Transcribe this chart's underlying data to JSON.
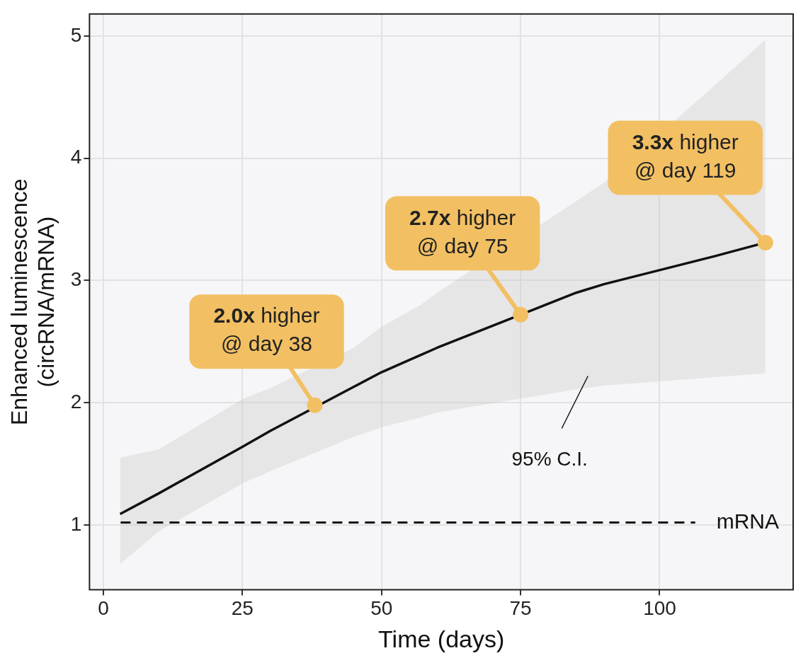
{
  "chart_data": {
    "type": "line",
    "xlabel": "Time (days)",
    "ylabel": "Enhanced luminescence\n(circRNA/mRNA)",
    "xlim": [
      -2.5,
      124
    ],
    "ylim": [
      0.47,
      5.18
    ],
    "xticks": [
      0,
      25,
      50,
      75,
      100
    ],
    "yticks": [
      1,
      2,
      3,
      4,
      5
    ],
    "grid": true,
    "legend": false,
    "marker": "none",
    "line_style": "solid",
    "series": [
      {
        "color": "#111111",
        "x": [
          3,
          10,
          25,
          30,
          45,
          50,
          57,
          60,
          85,
          90,
          110,
          119
        ],
        "values": [
          1.09,
          1.26,
          1.64,
          1.77,
          2.13,
          2.25,
          2.39,
          2.45,
          2.9,
          2.97,
          3.2,
          3.31
        ],
        "lower": [
          0.68,
          0.95,
          1.34,
          1.44,
          1.72,
          1.8,
          1.88,
          1.92,
          2.11,
          2.14,
          2.21,
          2.24
        ],
        "upper": [
          1.55,
          1.62,
          2.03,
          2.12,
          2.45,
          2.62,
          2.8,
          2.9,
          3.65,
          3.8,
          4.6,
          4.97
        ]
      }
    ],
    "ref_lines": [
      {
        "axis": "y",
        "value": 1.02,
        "label": "mRNA",
        "line_style": "dashed",
        "color": "#111111"
      }
    ],
    "annotations": [
      {
        "text": "2.0x higher\n@ day 38",
        "x": 38,
        "y": 1.98
      },
      {
        "text": "2.7x higher\n@ day 75",
        "x": 75,
        "y": 2.72
      },
      {
        "text": "3.3x higher\n@ day 119",
        "x": 119,
        "y": 3.31
      },
      "95% C.I."
    ]
  }
}
